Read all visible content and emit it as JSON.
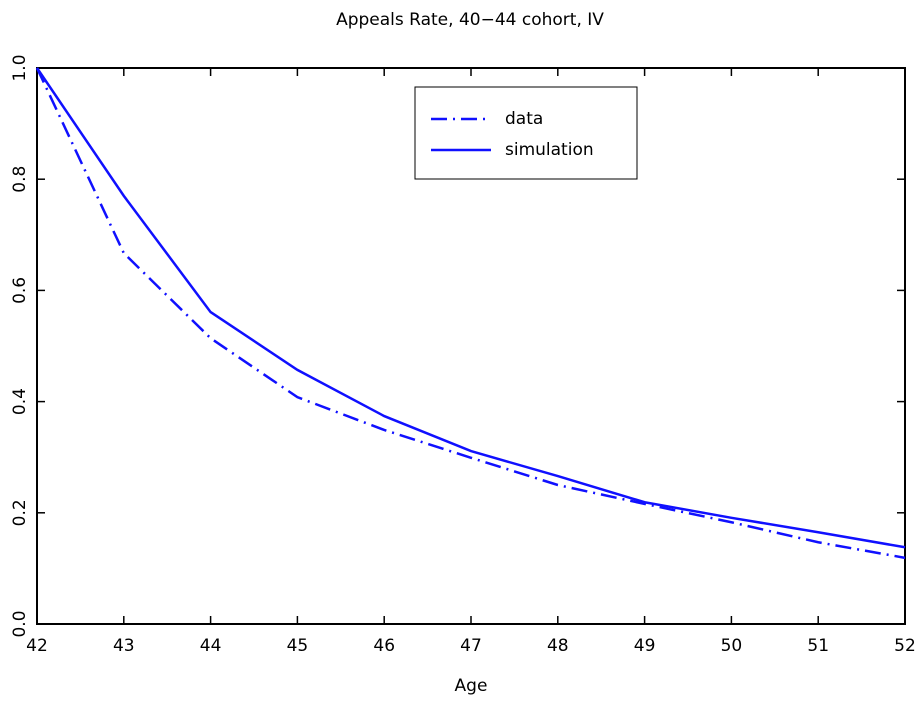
{
  "chart_data": {
    "type": "line",
    "title": "Appeals Rate, 40−44 cohort, IV",
    "xlabel": "Age",
    "x": [
      42,
      43,
      44,
      45,
      46,
      47,
      48,
      49,
      50,
      51,
      52
    ],
    "series": [
      {
        "name": "data",
        "color": "#1010ff",
        "linestyle": "dashdot",
        "values": [
          1.0,
          0.667,
          0.514,
          0.408,
          0.349,
          0.299,
          0.25,
          0.216,
          0.183,
          0.147,
          0.119
        ]
      },
      {
        "name": "simulation",
        "color": "#1010ff",
        "linestyle": "solid",
        "values": [
          1.0,
          0.77,
          0.561,
          0.457,
          0.374,
          0.311,
          0.266,
          0.219,
          0.191,
          0.165,
          0.138
        ]
      }
    ],
    "xlim": [
      42,
      52
    ],
    "xticks": [
      42,
      43,
      44,
      45,
      46,
      47,
      48,
      49,
      50,
      51,
      52
    ],
    "ylim": [
      0,
      1
    ],
    "yticks": [
      {
        "value": 0,
        "label": "0.0"
      },
      0.2,
      0.4,
      0.6,
      0.8,
      {
        "value": 1,
        "label": "1.0"
      }
    ],
    "grid": false,
    "legend": "upper center"
  }
}
